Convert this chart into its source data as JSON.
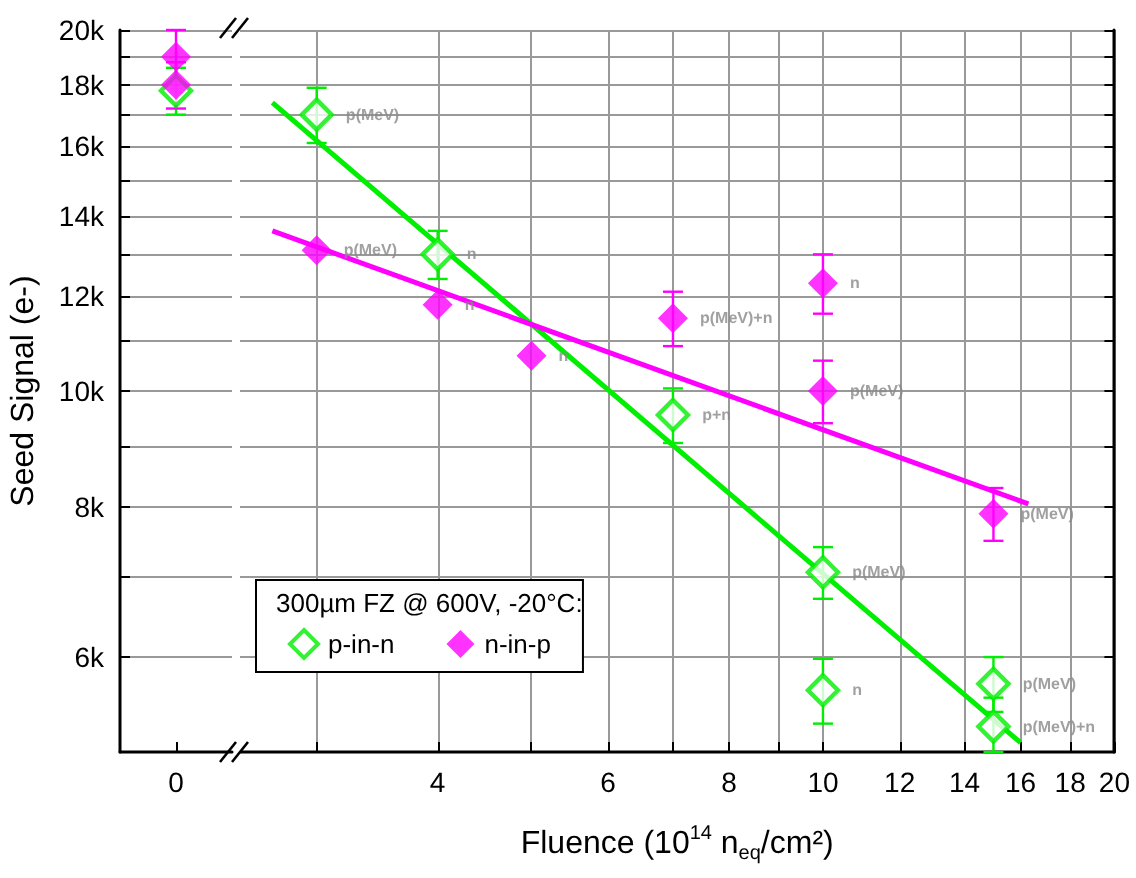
{
  "chart_data": [
    {
      "type": "scatter",
      "categories": [
        "0"
      ],
      "ylim": [
        5000,
        20000
      ],
      "log": "y",
      "grid": "y",
      "marker": "diamond",
      "ylabel": "Seed Signal (e-)",
      "yticks": [
        {
          "value": 6000,
          "label": "6k"
        },
        {
          "value": 7000,
          "label": null
        },
        {
          "value": 8000,
          "label": "8k"
        },
        {
          "value": 9000,
          "label": null
        },
        {
          "value": 10000,
          "label": "10k"
        },
        {
          "value": 11000,
          "label": null
        },
        {
          "value": 12000,
          "label": "12k"
        },
        {
          "value": 13000,
          "label": null
        },
        {
          "value": 14000,
          "label": "14k"
        },
        {
          "value": 15000,
          "label": null
        },
        {
          "value": 16000,
          "label": "16k"
        },
        {
          "value": 17000,
          "label": null
        },
        {
          "value": 18000,
          "label": "18k"
        },
        {
          "value": 19000,
          "label": null
        },
        {
          "value": 20000,
          "label": "20k"
        }
      ],
      "series": [
        {
          "color": "#00ee00",
          "marker": "diamond-open",
          "x": [
            "0"
          ],
          "values": [
            17800
          ],
          "errors": [
            800
          ]
        },
        {
          "color": "#ff00ff",
          "x": [
            "0",
            "0"
          ],
          "values": [
            19000,
            18000
          ],
          "errors": [
            1000,
            800
          ]
        }
      ]
    },
    {
      "type": "scatter",
      "xlim": [
        2.5,
        20
      ],
      "ylim": [
        5000,
        20000
      ],
      "log": "xy",
      "grid": true,
      "marker": "diamond",
      "tick_labels": "x",
      "legend": "bottom left",
      "legend_title": "300µm FZ @ 600V, -20°C:",
      "xlabel": "Fluence (10$^{14}$ n$_{eq}$/cm²)",
      "xticks": [
        {
          "value": 3,
          "label": null
        },
        4,
        {
          "value": 5,
          "label": null
        },
        6,
        {
          "value": 7,
          "label": null
        },
        8,
        {
          "value": 9,
          "label": null
        },
        10,
        12,
        14,
        16,
        18,
        20
      ],
      "yticks": [
        6000,
        7000,
        8000,
        9000,
        10000,
        11000,
        12000,
        13000,
        14000,
        15000,
        16000,
        17000,
        18000,
        19000,
        20000
      ],
      "series": [
        {
          "name": "p-in-n",
          "color": "#00ee00",
          "marker": "diamond-open",
          "x": [
            3,
            4,
            7,
            10,
            10,
            15,
            15
          ],
          "values": [
            17000,
            13000,
            9550,
            7060,
            5630,
            5700,
            5250
          ],
          "errors": [
            900,
            600,
            500,
            350,
            350,
            300,
            [
              5000,
              5550
            ]
          ],
          "value_labels": [
            "p(MeV)",
            "n",
            "p+n",
            "p(MeV)",
            "n",
            "p(MeV)",
            "p(MeV)+n"
          ]
        },
        {
          "name": "n-in-p",
          "color": "#ff00ff",
          "x": [
            3,
            4,
            5,
            7,
            10,
            10,
            15
          ],
          "values": [
            13100,
            11800,
            10700,
            11500,
            12300,
            10000,
            7900
          ],
          "errors": [
            null,
            null,
            null,
            600,
            700,
            600,
            400
          ],
          "value_labels": [
            "p(MeV)",
            "n",
            "n",
            "p(MeV)+n",
            "n",
            "p(MeV)",
            "p(MeV)"
          ]
        },
        {
          "type": "line",
          "marker": "none",
          "color": "#00ee00",
          "x": [
            2.7,
            16
          ],
          "values": [
            17400,
            5090
          ]
        },
        {
          "type": "line",
          "marker": "none",
          "color": "#ff00ff",
          "x": [
            2.7,
            16.3
          ],
          "values": [
            13600,
            8050
          ]
        }
      ]
    }
  ]
}
